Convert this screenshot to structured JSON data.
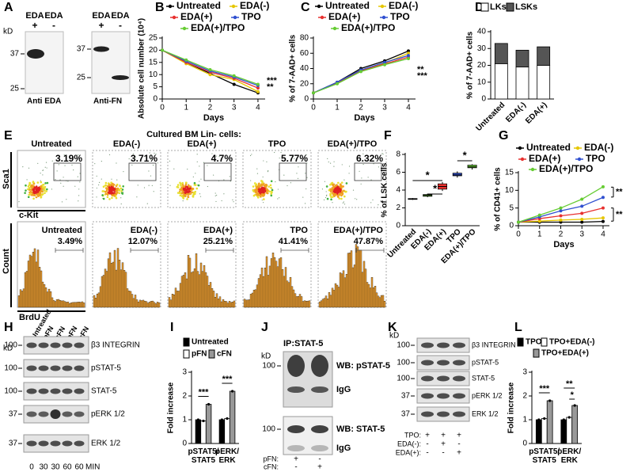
{
  "blot_a": {
    "panel": "A",
    "kd": "kD",
    "left": {
      "lanes": [
        "EDA",
        "EDA"
      ],
      "signs": [
        "+",
        "-"
      ],
      "markers": [
        "37",
        "25"
      ],
      "caption": "Anti EDA"
    },
    "right": {
      "lanes": [
        "EDA",
        "EDA"
      ],
      "signs": [
        "+",
        "-"
      ],
      "markers": [
        "37",
        "25"
      ],
      "caption": "Anti-FN"
    }
  },
  "flow": {
    "panel": "E",
    "title": "Cultured BM Lin- cells:",
    "scatter_y_label": "Sca1",
    "scatter_x_label": "c-Kit",
    "hist_y_label": "Count",
    "hist_x_label": "BrdU",
    "columns": [
      {
        "name": "Untreated",
        "scatter_pct": "3.19%",
        "hist_pct": "3.49%"
      },
      {
        "name": "EDA(-)",
        "scatter_pct": "3.71%",
        "hist_pct": "12.07%"
      },
      {
        "name": "EDA(+)",
        "scatter_pct": "4.7%",
        "hist_pct": "25.21%"
      },
      {
        "name": "TPO",
        "scatter_pct": "5.77%",
        "hist_pct": "41.41%"
      },
      {
        "name": "EDA(+)/TPO",
        "scatter_pct": "6.32%",
        "hist_pct": "47.87%"
      }
    ]
  },
  "blot_h": {
    "panel": "H",
    "kd": "kD",
    "lanes": [
      "Untreated",
      "pFN",
      "cFN",
      "pFN",
      "cFN"
    ],
    "rows": [
      {
        "marker": "100",
        "label": "β3 INTEGRIN"
      },
      {
        "marker": "100",
        "label": "pSTAT-5"
      },
      {
        "marker": "100",
        "label": "STAT-5"
      },
      {
        "marker": "37",
        "label": "pERK 1/2"
      },
      {
        "marker": "37",
        "label": "ERK 1/2"
      }
    ],
    "times": [
      "0",
      "30",
      "30",
      "60",
      "60"
    ],
    "time_unit": "MIN"
  },
  "blot_j": {
    "panel": "J",
    "title": "IP:STAT-5",
    "kd": "kD",
    "blots": [
      {
        "marker": "100",
        "labels": [
          "WB: pSTAT-5",
          "IgG"
        ]
      },
      {
        "marker": "100",
        "labels": [
          "WB: STAT-5",
          "IgG"
        ]
      }
    ],
    "conditions": [
      {
        "name": "pFN:",
        "signs": [
          "+",
          "-"
        ]
      },
      {
        "name": "cFN:",
        "signs": [
          "-",
          "+"
        ]
      }
    ]
  },
  "blot_k": {
    "panel": "K",
    "kd": "kD",
    "rows": [
      {
        "marker": "100",
        "label": "β3 INTEGRIN"
      },
      {
        "marker": "100",
        "label": "pSTAT-5"
      },
      {
        "marker": "100",
        "label": "STAT-5"
      },
      {
        "marker": "37",
        "label": "pERK 1/2"
      },
      {
        "marker": "37",
        "label": "ERK 1/2"
      }
    ],
    "conditions": [
      {
        "name": "TPO:",
        "signs": [
          "+",
          "+",
          "+"
        ]
      },
      {
        "name": "EDA(-):",
        "signs": [
          "-",
          "+",
          "-"
        ]
      },
      {
        "name": "EDA(+):",
        "signs": [
          "-",
          "-",
          "+"
        ]
      }
    ]
  },
  "chart_data": [
    {
      "panel": "B",
      "type": "line",
      "y_label": "Absolute cell number (10⁴)",
      "x_label": "Days",
      "x": [
        0,
        1,
        2,
        3,
        4
      ],
      "xlim": [
        0,
        4.3
      ],
      "xticks": [
        0,
        1,
        2,
        3,
        4
      ],
      "ylim": [
        0,
        25
      ],
      "yticks": [
        0,
        5,
        10,
        15,
        20,
        25
      ],
      "series": [
        {
          "name": "Untreated",
          "color": "#000000",
          "values": [
            20,
            15,
            10.5,
            6,
            2.5
          ]
        },
        {
          "name": "EDA(-)",
          "color": "#e6c700",
          "values": [
            20,
            14.5,
            10,
            8,
            3
          ]
        },
        {
          "name": "EDA(+)",
          "color": "#e8312f",
          "values": [
            20,
            15,
            11,
            8.5,
            4.5
          ]
        },
        {
          "name": "TPO",
          "color": "#3050d0",
          "values": [
            20,
            15.5,
            11.5,
            9,
            5.5
          ]
        },
        {
          "name": "EDA(+)/TPO",
          "color": "#66cc33",
          "values": [
            20,
            16,
            12,
            9.5,
            6
          ]
        }
      ],
      "annotations": [
        "***",
        "**"
      ]
    },
    {
      "panel": "C",
      "type": "line",
      "y_label": "% of 7-AAD+ cells",
      "x_label": "Days",
      "x": [
        0,
        1,
        2,
        3,
        4
      ],
      "xlim": [
        0,
        4.3
      ],
      "xticks": [
        0,
        1,
        2,
        3,
        4
      ],
      "ylim": [
        0,
        80
      ],
      "yticks": [
        0,
        20,
        40,
        60,
        80
      ],
      "series": [
        {
          "name": "Untreated",
          "color": "#000000",
          "values": [
            8,
            22,
            40,
            50,
            63
          ]
        },
        {
          "name": "EDA(-)",
          "color": "#e6c700",
          "values": [
            8,
            21,
            38,
            47,
            60
          ]
        },
        {
          "name": "EDA(+)",
          "color": "#e8312f",
          "values": [
            8,
            21,
            37,
            46,
            55
          ]
        },
        {
          "name": "TPO",
          "color": "#3050d0",
          "values": [
            8,
            22,
            38,
            48,
            57
          ]
        },
        {
          "name": "EDA(+)/TPO",
          "color": "#66cc33",
          "values": [
            8,
            20,
            36,
            45,
            53
          ]
        }
      ],
      "annotations": [
        "**",
        "***"
      ]
    },
    {
      "panel": "D",
      "type": "stacked_bar",
      "y_label": "% of 7-AAD+ cells",
      "categories": [
        "Untreated",
        "EDA(-)",
        "EDA(+)"
      ],
      "ylim": [
        0,
        40
      ],
      "yticks": [
        0,
        10,
        20,
        30,
        40
      ],
      "series": [
        {
          "name": "LKs",
          "color": "#ffffff",
          "values": [
            21,
            19,
            20
          ]
        },
        {
          "name": "LSKs",
          "color": "#555555",
          "values": [
            12,
            10,
            11
          ]
        }
      ]
    },
    {
      "panel": "F",
      "type": "box",
      "y_label": "% of LSK cells",
      "categories": [
        "Untreated",
        "EDA(-)",
        "EDA(+)",
        "TPO",
        "EDA(+)/TPO"
      ],
      "ylim": [
        0,
        8
      ],
      "yticks": [
        0,
        2,
        4,
        6,
        8
      ],
      "boxes": [
        {
          "color": "#aaaaaa",
          "min": 2.9,
          "q1": 2.95,
          "median": 3.0,
          "q3": 3.05,
          "max": 3.1
        },
        {
          "color": "#66cc33",
          "min": 3.2,
          "q1": 3.3,
          "median": 3.4,
          "q3": 3.5,
          "max": 3.6
        },
        {
          "color": "#e8312f",
          "min": 3.9,
          "q1": 4.1,
          "median": 4.4,
          "q3": 4.7,
          "max": 4.9
        },
        {
          "color": "#3050d0",
          "min": 5.4,
          "q1": 5.6,
          "median": 5.7,
          "q3": 5.9,
          "max": 6.1
        },
        {
          "color": "#66cc33",
          "min": 6.3,
          "q1": 6.5,
          "median": 6.6,
          "q3": 6.8,
          "max": 6.9
        }
      ],
      "annotations": [
        "*",
        "*",
        "*"
      ]
    },
    {
      "panel": "G",
      "type": "line",
      "y_label": "% of CD41+ cells",
      "x_label": "Days",
      "x": [
        0,
        1,
        2,
        3,
        4
      ],
      "xlim": [
        0,
        4.3
      ],
      "xticks": [
        0,
        1,
        2,
        3,
        4
      ],
      "ylim": [
        0,
        15
      ],
      "yticks": [
        0,
        5,
        10,
        15
      ],
      "series": [
        {
          "name": "Untreated",
          "color": "#000000",
          "values": [
            1,
            1,
            1,
            1,
            1.2
          ]
        },
        {
          "name": "EDA(-)",
          "color": "#e6c700",
          "values": [
            1,
            1.3,
            1.6,
            1.8,
            2.2
          ]
        },
        {
          "name": "EDA(+)",
          "color": "#e8312f",
          "values": [
            1,
            2,
            2.8,
            3.5,
            5
          ]
        },
        {
          "name": "TPO",
          "color": "#3050d0",
          "values": [
            1,
            2.5,
            4.2,
            5.5,
            8
          ]
        },
        {
          "name": "EDA(+)/TPO",
          "color": "#66cc33",
          "values": [
            1,
            3,
            5,
            7.5,
            11
          ]
        }
      ],
      "annotations": [
        "**",
        "**"
      ]
    },
    {
      "panel": "I",
      "type": "grouped_bar",
      "y_label": "Fold increase",
      "categories": [
        "pSTAT5/\nSTAT5",
        "pERK/\nERK"
      ],
      "ylim": [
        0,
        3
      ],
      "yticks": [
        0,
        1,
        2,
        3
      ],
      "series": [
        {
          "name": "Untreated",
          "color": "#000000",
          "values": [
            1,
            1
          ]
        },
        {
          "name": "pFN",
          "color": "#ffffff",
          "values": [
            0.95,
            1.05
          ]
        },
        {
          "name": "cFN",
          "color": "#999999",
          "values": [
            1.65,
            2.2
          ]
        }
      ],
      "annotations": [
        "***",
        "***"
      ]
    },
    {
      "panel": "L",
      "type": "grouped_bar",
      "y_label": "Fold increase",
      "categories": [
        "pSTAT5/\nSTAT5",
        "pERK/\nERK"
      ],
      "ylim": [
        0,
        3
      ],
      "yticks": [
        0,
        1,
        2,
        3
      ],
      "series": [
        {
          "name": "TPO",
          "color": "#000000",
          "values": [
            1,
            1
          ]
        },
        {
          "name": "TPO+EDA(-)",
          "color": "#ffffff",
          "values": [
            1.05,
            1.1
          ]
        },
        {
          "name": "TPO+EDA(+)",
          "color": "#999999",
          "values": [
            1.8,
            1.6
          ]
        }
      ],
      "annotations": [
        "***",
        "**",
        "*"
      ]
    }
  ]
}
